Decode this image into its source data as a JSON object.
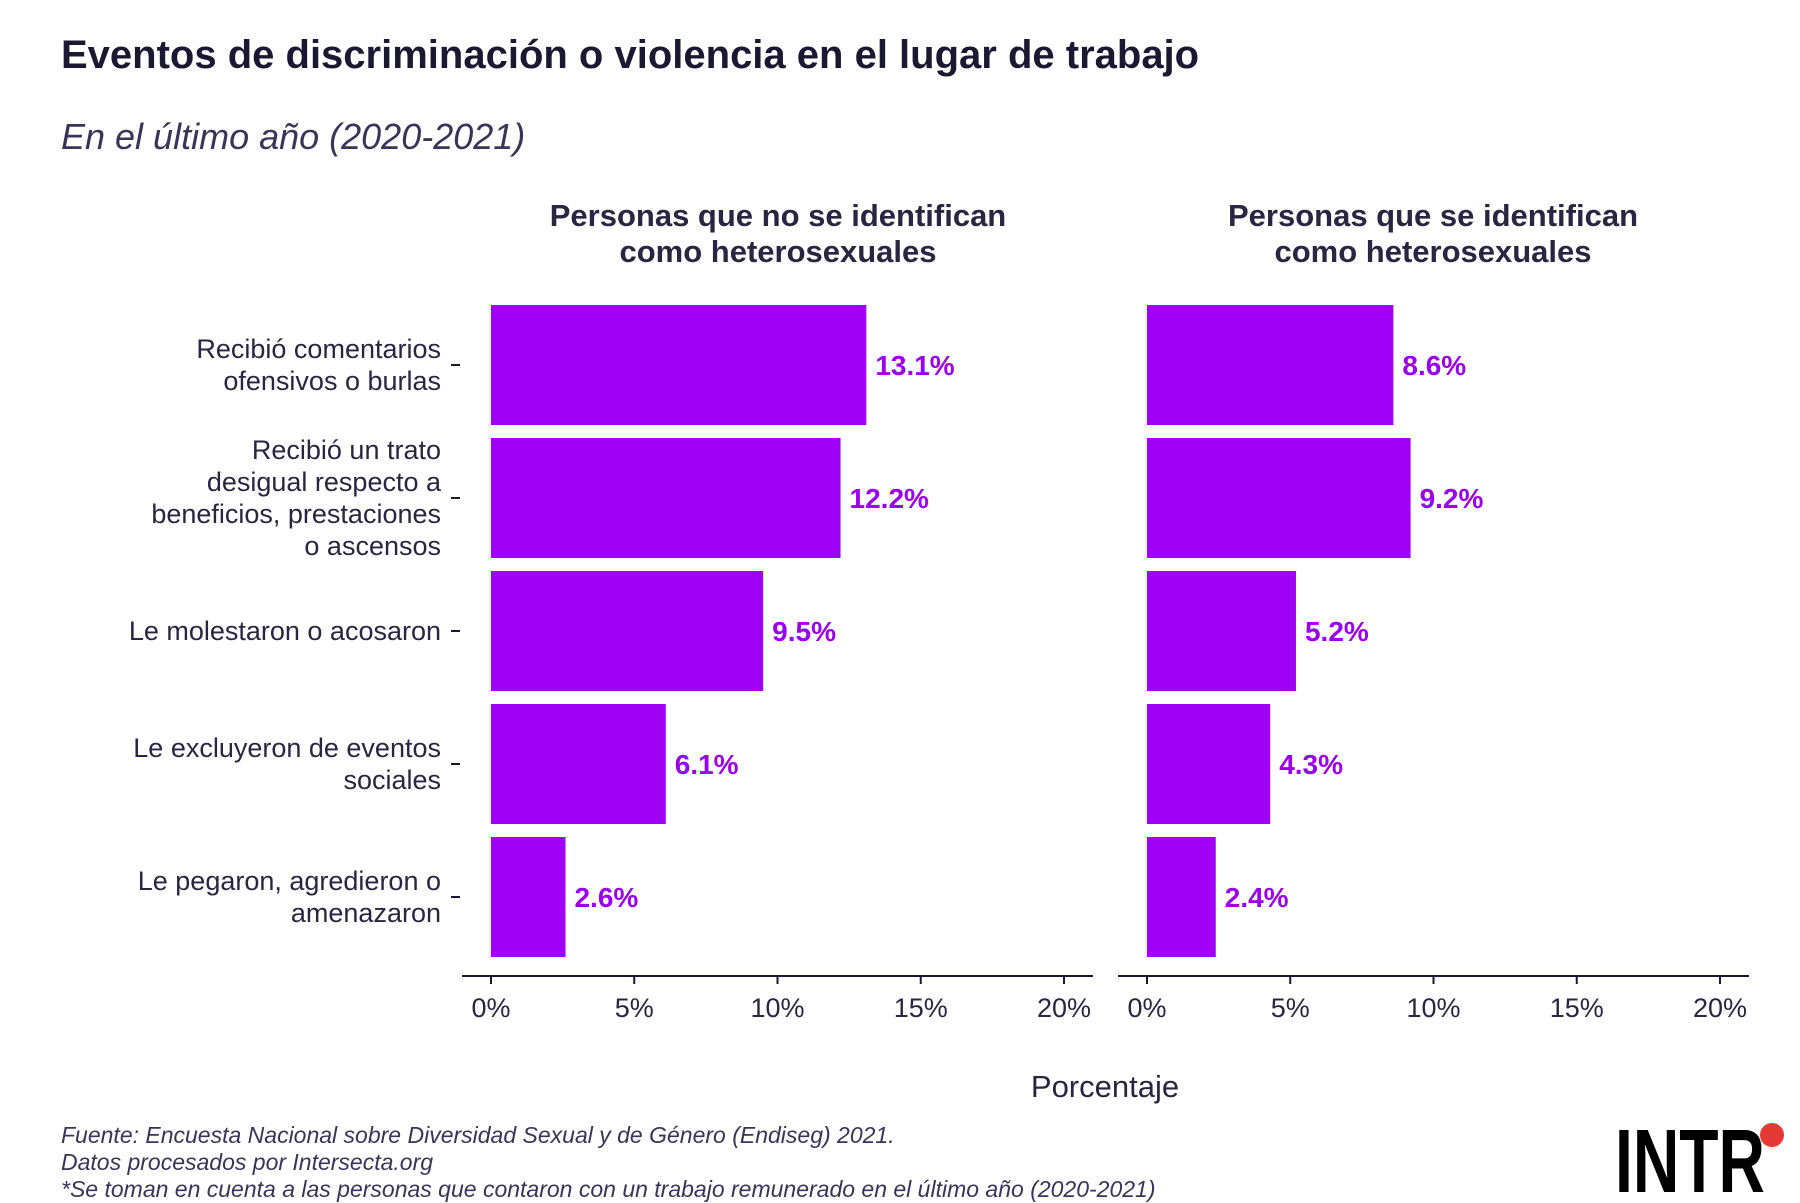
{
  "title": "Eventos de discriminación o violencia en el lugar de trabajo",
  "subtitle": "En el último año (2020-2021)",
  "footer": {
    "source": "Fuente: Encuesta Nacional sobre Diversidad Sexual y de Género (Endiseg) 2021.",
    "processed": "Datos procesados por Intersecta.org",
    "note": "*Se toman en cuenta a las personas que contaron con un trabajo remunerado en el último año (2020-2021)"
  },
  "logo": {
    "text": "INTR",
    "dot_color": "#e53935"
  },
  "colors": {
    "bar": "#a000f5",
    "label": "#9b00ee",
    "text": "#2a2541",
    "axis": "#1b1931"
  },
  "chart_data": {
    "type": "bar",
    "orientation": "horizontal",
    "xlabel": "Porcentaje",
    "xlim": [
      0,
      20
    ],
    "xticks": [
      "0%",
      "5%",
      "10%",
      "15%",
      "20%"
    ],
    "grid": false,
    "categories": [
      [
        "Recibió comentarios",
        "ofensivos o burlas"
      ],
      [
        "Recibió un trato",
        "desigual respecto a",
        "beneficios, prestaciones",
        "o ascensos"
      ],
      [
        "Le molestaron o acosaron"
      ],
      [
        "Le excluyeron de eventos",
        "sociales"
      ],
      [
        "Le pegaron, agredieron o",
        "amenazaron"
      ]
    ],
    "panels": [
      {
        "title": [
          "Personas que no se identifican",
          "como heterosexuales"
        ],
        "values": [
          13.1,
          12.2,
          9.5,
          6.1,
          2.6
        ],
        "labels": [
          "13.1%",
          "12.2%",
          "9.5%",
          "6.1%",
          "2.6%"
        ]
      },
      {
        "title": [
          "Personas que se identifican",
          "como heterosexuales"
        ],
        "values": [
          8.6,
          9.2,
          5.2,
          4.3,
          2.4
        ],
        "labels": [
          "8.6%",
          "9.2%",
          "5.2%",
          "4.3%",
          "2.4%"
        ]
      }
    ]
  }
}
